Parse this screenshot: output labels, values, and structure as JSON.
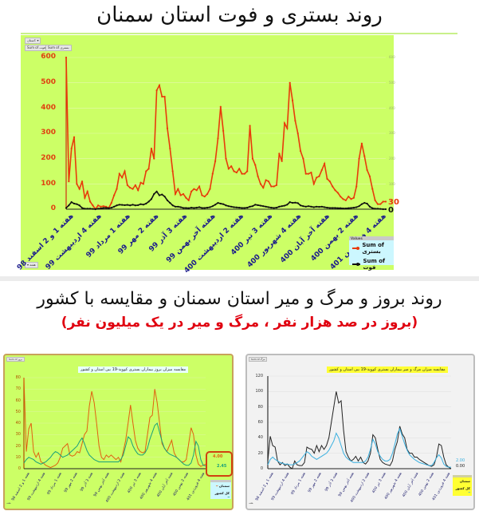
{
  "header": {
    "title": "روند بستری و فوت استان سمنان"
  },
  "section2": {
    "title": "روند بروز و مرگ و میر استان سمنان و مقایسه با کشور",
    "subtitle": "(بروز در صد هزار نفر ، مرگ و میر در یک میلیون نفر)"
  },
  "main_chart": {
    "filter_button": "استان: ▾",
    "field_buttons": [
      "Sum of فوت",
      "Sum of بستری"
    ],
    "bottom_button": "▾ هفته",
    "legend_header": "Values",
    "legend": [
      {
        "label": "Sum of بستری",
        "color": "#e83a0a"
      },
      {
        "label": "Sum of فوت",
        "color": "#111111"
      }
    ],
    "end_labels": {
      "hospitalized": "30",
      "deaths": "0"
    }
  },
  "left_chart": {
    "title": "مقایسه میزان بروز بیماران بستری کووید-19 بین استان و کشور",
    "corner_label": "Sum of بروز",
    "end_labels": {
      "province": "4.00",
      "country": "2.45"
    },
    "legend": [
      {
        "label": "سمنان",
        "color": "#e06010"
      },
      {
        "label": "کل کشور",
        "color": "#1aa07a"
      }
    ],
    "bottom_button": "هفته"
  },
  "right_chart": {
    "title": "مقایسه میزان مرگ و میر بیماران بستری کووید-19 بین استان و کشور",
    "corner_label": "Sum of مرگ",
    "end_labels": {
      "province": "0.00",
      "country": "2.00"
    },
    "legend": [
      {
        "label": "سمنان",
        "color": "#222222"
      },
      {
        "label": "کل کشور",
        "color": "#3ab0e0"
      }
    ],
    "bottom_button": "هفته"
  },
  "chart_data": [
    {
      "type": "line",
      "title": "روند بستری و فوت استان سمنان",
      "xlabel": "",
      "ylabel": "",
      "ylim": [
        0,
        600
      ],
      "y_ticks": [
        0,
        100,
        200,
        300,
        400,
        500,
        600
      ],
      "grid": true,
      "legend_position": "bottom-right",
      "x_tick_labels": [
        "هفته 1 و 2 اسفند 98",
        "هفته 4 اردیبهشت 99",
        "هفته 1 مرداد 99",
        "هفته 2 مهر 99",
        "هفته 3 آذر 99",
        "هفته آخر بهمن 99",
        "هفته 2 اردیبهشت 400",
        "هفته 3 تیر 400",
        "هفته 4 شهریور 400",
        "هفته آخر آبان 400",
        "هفته 2 بهمن 400",
        "هفته 4 فروردین 401"
      ],
      "series": [
        {
          "name": "Sum of بستری",
          "color": "#e83a0a",
          "values": [
            600,
            110,
            240,
            285,
            100,
            80,
            110,
            45,
            70,
            30,
            15,
            0,
            15,
            10,
            12,
            10,
            5,
            25,
            55,
            80,
            140,
            125,
            150,
            95,
            85,
            80,
            95,
            75,
            105,
            100,
            150,
            160,
            240,
            200,
            470,
            490,
            445,
            445,
            320,
            240,
            150,
            60,
            80,
            55,
            60,
            45,
            35,
            70,
            80,
            75,
            90,
            55,
            50,
            60,
            80,
            140,
            190,
            280,
            405,
            310,
            200,
            160,
            170,
            150,
            145,
            160,
            140,
            140,
            150,
            330,
            200,
            175,
            130,
            100,
            85,
            115,
            110,
            90,
            90,
            95,
            220,
            190,
            340,
            320,
            500,
            430,
            350,
            300,
            230,
            200,
            140,
            140,
            145,
            100,
            125,
            130,
            155,
            180,
            120,
            110,
            90,
            75,
            65,
            50,
            40,
            35,
            50,
            40,
            45,
            90,
            200,
            260,
            210,
            155,
            130,
            80,
            35,
            20,
            20,
            30,
            30
          ]
        },
        {
          "name": "Sum of فوت",
          "color": "#111111",
          "values": [
            5,
            15,
            28,
            22,
            20,
            15,
            5,
            2,
            2,
            2,
            1,
            0,
            2,
            3,
            5,
            5,
            4,
            6,
            10,
            15,
            18,
            17,
            16,
            17,
            15,
            18,
            15,
            16,
            20,
            18,
            22,
            30,
            40,
            60,
            70,
            55,
            58,
            50,
            35,
            25,
            15,
            10,
            10,
            8,
            5,
            5,
            4,
            6,
            5,
            6,
            8,
            5,
            5,
            6,
            8,
            12,
            18,
            25,
            22,
            20,
            15,
            12,
            10,
            8,
            7,
            6,
            5,
            5,
            6,
            10,
            12,
            18,
            16,
            14,
            12,
            10,
            8,
            6,
            5,
            6,
            10,
            12,
            14,
            18,
            28,
            25,
            26,
            24,
            15,
            12,
            10,
            12,
            10,
            8,
            10,
            9,
            10,
            8,
            6,
            5,
            5,
            5,
            4,
            4,
            3,
            3,
            4,
            5,
            6,
            8,
            12,
            20,
            25,
            22,
            10,
            4,
            2,
            2,
            1,
            0,
            0
          ]
        }
      ]
    },
    {
      "type": "line",
      "title": "مقایسه میزان بروز بیماران بستری کووید-19 بین استان و کشور",
      "ylim": [
        0,
        80
      ],
      "y_ticks": [
        0,
        10,
        20,
        30,
        40,
        50,
        60,
        70,
        80
      ],
      "x_tick_labels": [
        "هفته 1 و 2 اسفند 98",
        "هفته 4 اردیبهشت 99",
        "هفته 1 مرداد 99",
        "هفته 2 مهر 99",
        "هفته 3 آذر 99",
        "هفته آخر بهمن 99",
        "هفته 2 اردیبهشت 400",
        "هفته 3 تیر 400",
        "هفته 4 شهریور 400",
        "هفته آخر آبان 400",
        "هفته 2 بهمن 400",
        "هفته 4 فروردین 401"
      ],
      "legend_position": "bottom-right",
      "series": [
        {
          "name": "سمنان",
          "color": "#e06010",
          "values": [
            80,
            15,
            35,
            40,
            15,
            10,
            14,
            6,
            5,
            3,
            2,
            1,
            2,
            3,
            5,
            10,
            18,
            20,
            22,
            12,
            11,
            12,
            15,
            14,
            22,
            30,
            33,
            55,
            68,
            58,
            40,
            20,
            10,
            8,
            12,
            10,
            12,
            10,
            8,
            10,
            6,
            15,
            25,
            40,
            56,
            40,
            25,
            18,
            15,
            14,
            15,
            30,
            45,
            47,
            70,
            58,
            40,
            22,
            18,
            15,
            20,
            25,
            14,
            10,
            8,
            6,
            6,
            8,
            22,
            36,
            30,
            12,
            4,
            2,
            3,
            4
          ]
        },
        {
          "name": "کل کشور",
          "color": "#1aa07a",
          "values": [
            5,
            8,
            10,
            9,
            8,
            6,
            5,
            4,
            5,
            6,
            8,
            10,
            13,
            15,
            14,
            12,
            10,
            11,
            12,
            14,
            16,
            18,
            20,
            24,
            27,
            22,
            16,
            12,
            10,
            8,
            7,
            6,
            6,
            6,
            6,
            6,
            6,
            6,
            6,
            6,
            8,
            12,
            20,
            28,
            26,
            20,
            16,
            13,
            12,
            12,
            14,
            18,
            26,
            32,
            38,
            40,
            32,
            24,
            18,
            15,
            13,
            12,
            11,
            10,
            8,
            6,
            4,
            3,
            3,
            5,
            12,
            24,
            20,
            8,
            3,
            2.45
          ]
        }
      ]
    },
    {
      "type": "line",
      "title": "مقایسه میزان مرگ و میر بیماران بستری کووید-19 بین استان و کشور",
      "ylim": [
        0,
        120
      ],
      "y_ticks": [
        0,
        20,
        40,
        60,
        80,
        100,
        120
      ],
      "x_tick_labels": [
        "هفته 1 و 2 اسفند 98",
        "هفته 4 اردیبهشت 99",
        "هفته 1 مرداد 99",
        "هفته 2 مهر 99",
        "هفته 3 آذر 99",
        "هفته آخر بهمن 99",
        "هفته 2 اردیبهشت 400",
        "هفته 3 تیر 400",
        "هفته 4 شهریور 400",
        "هفته آخر آبان 400",
        "هفته 2 بهمن 400",
        "هفته 4 فروردین 401"
      ],
      "legend_position": "bottom-right",
      "series": [
        {
          "name": "سمنان",
          "color": "#222222",
          "values": [
            10,
            42,
            30,
            28,
            10,
            5,
            8,
            4,
            6,
            2,
            0,
            10,
            5,
            4,
            4,
            8,
            28,
            26,
            25,
            20,
            30,
            22,
            30,
            25,
            30,
            40,
            60,
            80,
            100,
            85,
            88,
            50,
            22,
            15,
            10,
            12,
            16,
            10,
            15,
            8,
            6,
            10,
            20,
            44,
            40,
            25,
            12,
            8,
            6,
            5,
            4,
            10,
            25,
            35,
            55,
            45,
            40,
            25,
            20,
            20,
            15,
            15,
            12,
            10,
            8,
            6,
            4,
            3,
            5,
            15,
            32,
            30,
            15,
            5,
            2,
            0
          ]
        },
        {
          "name": "کل کشور",
          "color": "#3ab0e0",
          "values": [
            5,
            12,
            15,
            12,
            10,
            8,
            7,
            6,
            6,
            5,
            5,
            6,
            8,
            10,
            14,
            18,
            22,
            20,
            16,
            14,
            12,
            14,
            16,
            18,
            20,
            24,
            30,
            36,
            46,
            40,
            30,
            20,
            15,
            12,
            10,
            8,
            8,
            8,
            8,
            8,
            10,
            15,
            25,
            38,
            32,
            22,
            16,
            12,
            10,
            10,
            12,
            20,
            32,
            45,
            52,
            42,
            32,
            24,
            18,
            15,
            12,
            10,
            8,
            7,
            6,
            5,
            4,
            4,
            8,
            14,
            18,
            14,
            6,
            3,
            2,
            2
          ]
        }
      ]
    }
  ]
}
